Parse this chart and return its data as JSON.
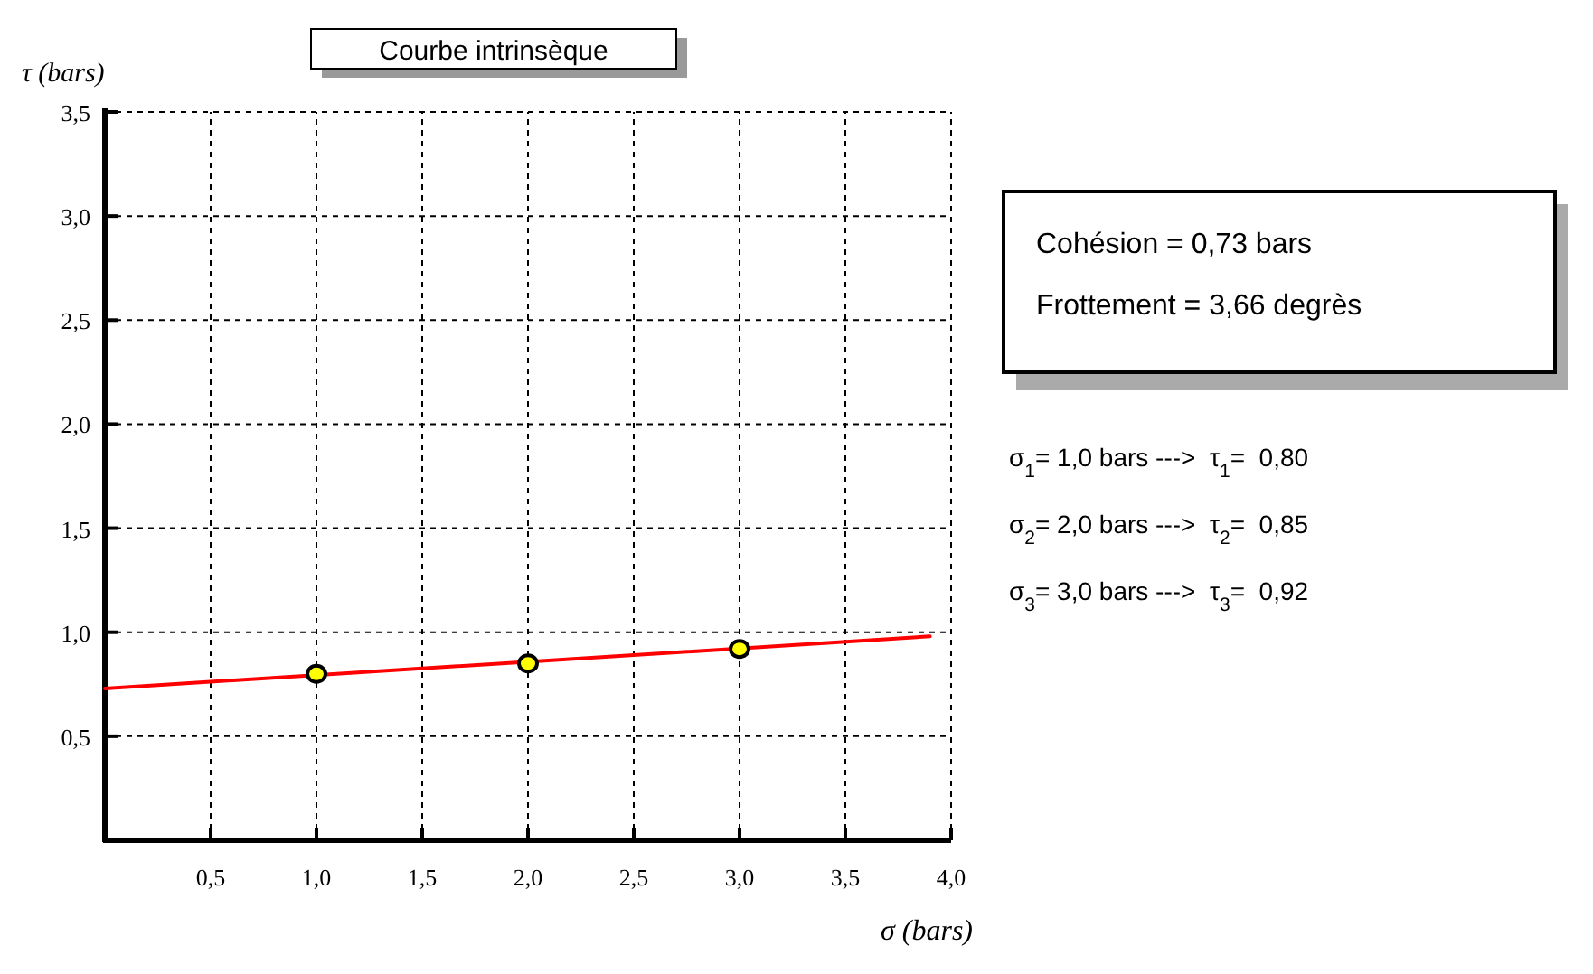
{
  "chart_data": {
    "type": "scatter",
    "title": "Courbe intrinsèque",
    "xlabel": "σ (bars)",
    "ylabel": "τ (bars)",
    "xlim": [
      0,
      4
    ],
    "ylim": [
      0,
      3.5
    ],
    "xticks": [
      {
        "value": 0.5,
        "label": "0,5"
      },
      {
        "value": 1,
        "label": "1,0"
      },
      {
        "value": 1.5,
        "label": "1,5"
      },
      {
        "value": 2,
        "label": "2,0"
      },
      {
        "value": 2.5,
        "label": "2,5"
      },
      {
        "value": 3,
        "label": "3,0"
      },
      {
        "value": 3.5,
        "label": "3,5"
      },
      {
        "value": 4,
        "label": "4,0"
      }
    ],
    "yticks": [
      {
        "value": 0.5,
        "label": "0,5"
      },
      {
        "value": 1,
        "label": "1,0"
      },
      {
        "value": 1.5,
        "label": "1,5"
      },
      {
        "value": 2,
        "label": "2,0"
      },
      {
        "value": 2.5,
        "label": "2,5"
      },
      {
        "value": 3,
        "label": "3,0"
      },
      {
        "value": 3.5,
        "label": "3,5"
      }
    ],
    "grid": true,
    "series": [
      {
        "type": "line",
        "color": "#ff0000",
        "x": [
          0,
          3.9
        ],
        "values": [
          0.73,
          0.98
        ],
        "marker": "none",
        "line_style": "solid"
      },
      {
        "color": "#ffff00",
        "x": [
          1,
          2,
          3
        ],
        "values": [
          0.8,
          0.85,
          0.92
        ],
        "marker": "circle"
      }
    ],
    "annotations": [
      "Cohésion = 0,73 bars",
      "Frottement = 3,66 degrès",
      "σ$_{1}$= 1,0 bars --->  τ$_{1}$=  0,80",
      "σ$_{2}$= 2,0 bars --->  τ$_{2}$=  0,85",
      "σ$_{3}$= 3,0 bars --->  τ$_{3}$=  0,92"
    ]
  }
}
